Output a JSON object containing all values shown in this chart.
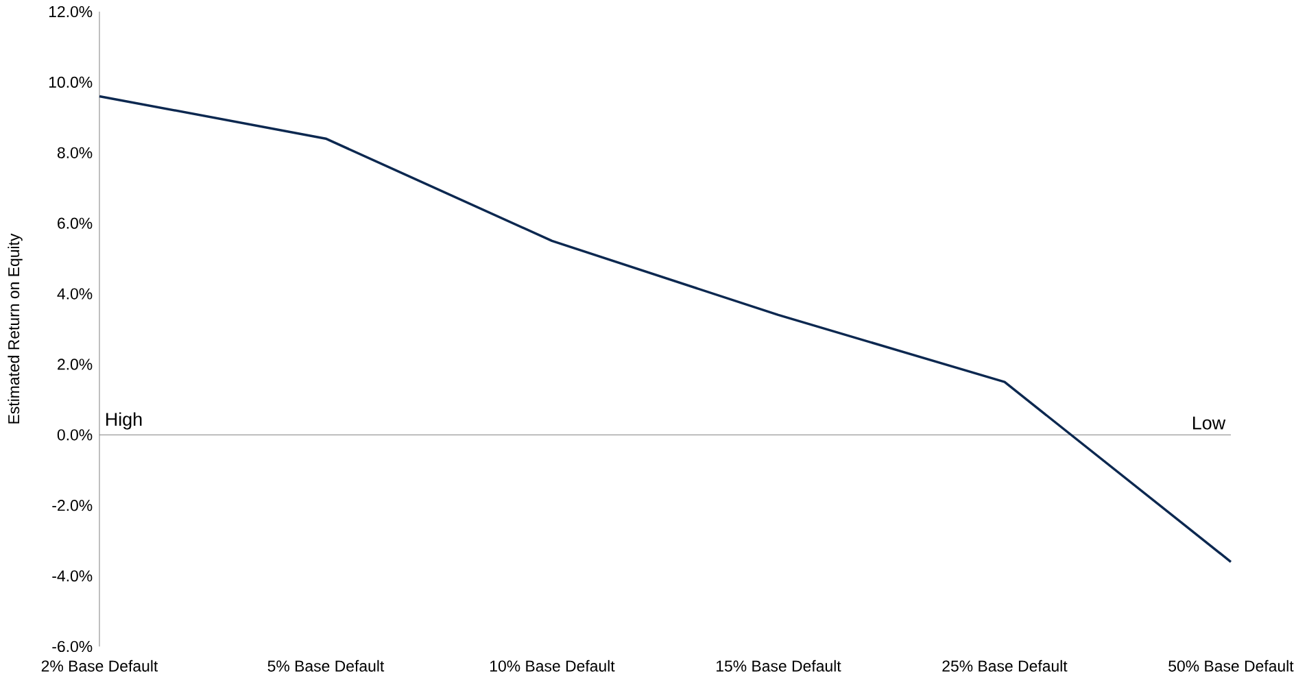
{
  "chart_data": {
    "type": "line",
    "ylabel": "Estimated Return on Equity",
    "categories": [
      "2% Base Default",
      "5% Base Default",
      "10% Base Default",
      "15% Base Default",
      "25% Base Default",
      "50% Base Default"
    ],
    "series": [
      {
        "color": "#0c2850",
        "values": [
          9.6,
          8.4,
          5.5,
          3.4,
          1.5,
          -3.6
        ]
      }
    ],
    "ylim": [
      -6,
      12
    ],
    "yticks": [
      {
        "value": -6,
        "label": "-6.0%"
      },
      {
        "value": -4,
        "label": "-4.0%"
      },
      {
        "value": -2,
        "label": "-2.0%"
      },
      {
        "value": 0,
        "label": "0.0%"
      },
      {
        "value": 2,
        "label": "2.0%"
      },
      {
        "value": 4,
        "label": "4.0%"
      },
      {
        "value": 6,
        "label": "6.0%"
      },
      {
        "value": 8,
        "label": "8.0%"
      },
      {
        "value": 10,
        "label": "10.0%"
      },
      {
        "value": 12,
        "label": "12.0%"
      }
    ],
    "ref_lines": [
      {
        "axis": "y",
        "value": 0,
        "color": "#808080"
      }
    ],
    "annotations": [
      "High",
      "Low"
    ],
    "grid": false,
    "marker": "none",
    "line_style": "solid"
  }
}
